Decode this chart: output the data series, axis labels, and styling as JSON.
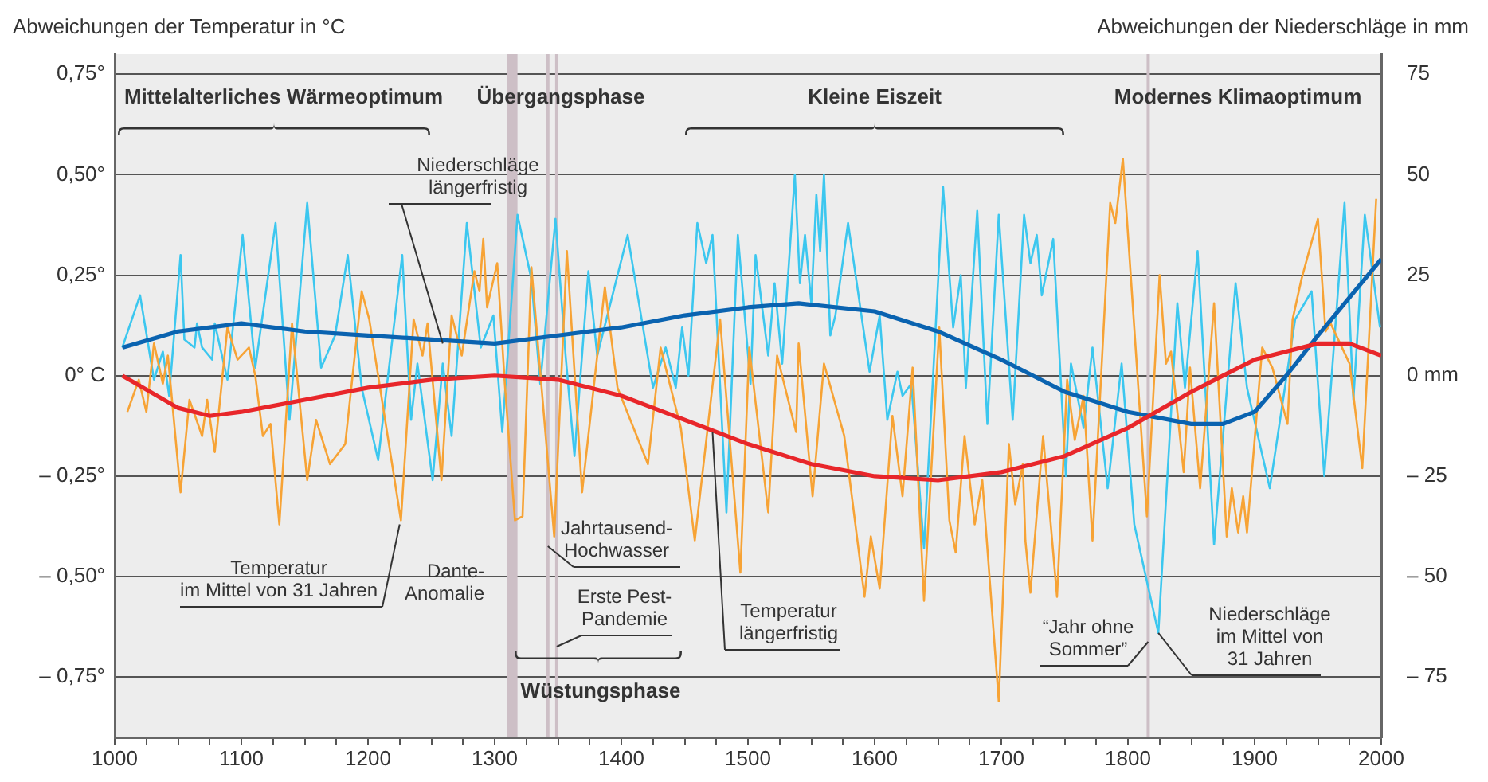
{
  "chart_data": {
    "type": "line",
    "ylabel": "Abweichungen der Temperatur in °C",
    "y2label": "Abweichungen der Niederschläge in mm",
    "annotations": [
      "Mittelalterliches Wärmeoptimum",
      "Übergangsphase",
      "Kleine Eiszeit",
      "Modernes Klimaoptimum",
      "Wüstungsphase"
    ],
    "xlim": [
      1000,
      2000
    ],
    "xticks": [
      1000,
      {
        "value": 1025,
        "label": null
      },
      {
        "value": 1050,
        "label": null
      },
      {
        "value": 1075,
        "label": null
      },
      1100,
      {
        "value": 1125,
        "label": null
      },
      {
        "value": 1150,
        "label": null
      },
      {
        "value": 1175,
        "label": null
      },
      1200,
      {
        "value": 1225,
        "label": null
      },
      {
        "value": 1250,
        "label": null
      },
      {
        "value": 1275,
        "label": null
      },
      1300,
      {
        "value": 1325,
        "label": null
      },
      {
        "value": 1350,
        "label": null
      },
      {
        "value": 1375,
        "label": null
      },
      1400,
      {
        "value": 1425,
        "label": null
      },
      {
        "value": 1450,
        "label": null
      },
      {
        "value": 1475,
        "label": null
      },
      1500,
      {
        "value": 1525,
        "label": null
      },
      {
        "value": 1550,
        "label": null
      },
      {
        "value": 1575,
        "label": null
      },
      1600,
      {
        "value": 1625,
        "label": null
      },
      {
        "value": 1650,
        "label": null
      },
      {
        "value": 1675,
        "label": null
      },
      1700,
      {
        "value": 1725,
        "label": null
      },
      {
        "value": 1750,
        "label": null
      },
      {
        "value": 1775,
        "label": null
      },
      1800,
      {
        "value": 1825,
        "label": null
      },
      {
        "value": 1850,
        "label": null
      },
      {
        "value": 1875,
        "label": null
      },
      1900,
      {
        "value": 1925,
        "label": null
      },
      {
        "value": 1950,
        "label": null
      },
      {
        "value": 1975,
        "label": null
      },
      2000
    ],
    "ylim": [
      -0.9,
      0.8
    ],
    "yticks": [
      {
        "value": -0.75,
        "label": "– 0,75°"
      },
      {
        "value": -0.5,
        "label": "– 0,50°"
      },
      {
        "value": -0.25,
        "label": "– 0,25°"
      },
      {
        "value": 0,
        "label": "0° C"
      },
      {
        "value": 0.25,
        "label": "0,25°"
      },
      {
        "value": 0.5,
        "label": "0,50°"
      },
      {
        "value": 0.75,
        "label": "0,75°"
      }
    ],
    "y2lim": [
      -90,
      80
    ],
    "y2ticks": [
      {
        "value": -75,
        "label": "– 75"
      },
      {
        "value": -50,
        "label": "– 50"
      },
      {
        "value": -25,
        "label": "– 25"
      },
      {
        "value": 0,
        "label": "0 mm"
      },
      25,
      50,
      75
    ],
    "grid": "y",
    "legend": false,
    "marker": "none",
    "bands": [
      {
        "axis": "x",
        "from": 1310,
        "to": 1318,
        "label": "Dante-Anomalie",
        "color": "#cdbfc6"
      }
    ],
    "ref_lines": [
      {
        "axis": "x",
        "value": 1342,
        "label": "Jahrtausend-Hochwasser",
        "color": "#cdbfc6"
      },
      {
        "axis": "x",
        "value": 1349,
        "label": "Erste Pest-Pandemie",
        "color": "#cdbfc6"
      },
      {
        "axis": "x",
        "value": 1816,
        "label": "“Jahr ohne Sommer”",
        "color": "#cdbfc6"
      }
    ],
    "series": [
      {
        "name": "Temperatur im Mittel von 31 Jahren",
        "color": "#f7a335",
        "x": [
          1010,
          1019,
          1025,
          1031,
          1038,
          1042,
          1052,
          1059,
          1069,
          1073,
          1079,
          1089,
          1097,
          1106,
          1111,
          1117,
          1123,
          1130,
          1140,
          1152,
          1159,
          1170,
          1182,
          1195,
          1201,
          1226,
          1236,
          1243,
          1247,
          1258,
          1266,
          1274,
          1284,
          1288,
          1291,
          1294,
          1302,
          1308,
          1316,
          1322,
          1329,
          1347,
          1357,
          1369,
          1387,
          1397,
          1421,
          1431,
          1447,
          1458,
          1478,
          1494,
          1501,
          1516,
          1523,
          1538,
          1540,
          1551,
          1560,
          1576,
          1592,
          1597,
          1604,
          1614,
          1622,
          1630,
          1639,
          1651,
          1659,
          1664,
          1671,
          1679,
          1685,
          1698,
          1706,
          1711,
          1717,
          1719,
          1723,
          1733,
          1744,
          1752,
          1758,
          1765,
          1772,
          1786,
          1790,
          1796,
          1815,
          1825,
          1830,
          1834,
          1844,
          1849,
          1857,
          1868,
          1878,
          1882,
          1887,
          1891,
          1894,
          1906,
          1914,
          1926,
          1930,
          1937,
          1950,
          1956,
          1960,
          1975,
          1985,
          1996
        ],
        "values": [
          -0.09,
          -0.01,
          -0.09,
          0.08,
          -0.02,
          0.05,
          -0.29,
          -0.06,
          -0.15,
          -0.06,
          -0.19,
          0.12,
          0.04,
          0.07,
          0,
          -0.15,
          -0.12,
          -0.37,
          0.13,
          -0.26,
          -0.11,
          -0.22,
          -0.17,
          0.21,
          0.14,
          -0.36,
          0.14,
          0.05,
          0.13,
          -0.26,
          0.15,
          0.05,
          0.26,
          0.21,
          0.34,
          0.17,
          0.28,
          -0.02,
          -0.36,
          -0.35,
          0.27,
          -0.4,
          0.31,
          -0.29,
          0.22,
          -0.03,
          -0.22,
          0.07,
          -0.13,
          -0.41,
          0.14,
          -0.49,
          0.07,
          -0.34,
          0.05,
          -0.14,
          0.08,
          -0.3,
          0.03,
          -0.15,
          -0.55,
          -0.4,
          -0.53,
          -0.1,
          -0.3,
          0.02,
          -0.56,
          0.12,
          -0.36,
          -0.44,
          -0.15,
          -0.37,
          -0.26,
          -0.81,
          -0.17,
          -0.32,
          -0.22,
          -0.41,
          -0.54,
          -0.15,
          -0.55,
          -0.01,
          -0.16,
          -0.05,
          -0.41,
          0.43,
          0.38,
          0.54,
          -0.35,
          0.25,
          0.03,
          0.06,
          -0.24,
          0.02,
          -0.28,
          0.18,
          -0.4,
          -0.28,
          -0.39,
          -0.3,
          -0.39,
          0.07,
          0.02,
          -0.12,
          0.14,
          0.24,
          0.39,
          0.11,
          0.13,
          0.03,
          -0.23,
          0.44
        ]
      },
      {
        "name": "Temperatur längerfristig",
        "color": "#e8262a",
        "x": [
          1006,
          1050,
          1075,
          1100,
          1150,
          1200,
          1250,
          1300,
          1350,
          1400,
          1450,
          1500,
          1550,
          1600,
          1650,
          1700,
          1750,
          1800,
          1850,
          1900,
          1950,
          1975,
          2000
        ],
        "values": [
          0,
          -0.08,
          -0.1,
          -0.09,
          -0.06,
          -0.03,
          -0.01,
          0,
          -0.01,
          -0.05,
          -0.11,
          -0.17,
          -0.22,
          -0.25,
          -0.26,
          -0.24,
          -0.2,
          -0.13,
          -0.04,
          0.04,
          0.08,
          0.08,
          0.05
        ]
      },
      {
        "name": "Niederschläge im Mittel von 31 Jahren",
        "color": "#3cc7ef",
        "axis": "y2",
        "x": [
          1006,
          1020,
          1031,
          1038,
          1043,
          1052,
          1055,
          1063,
          1065,
          1069,
          1077,
          1079,
          1089,
          1101,
          1111,
          1127,
          1138,
          1152,
          1163,
          1174,
          1184,
          1195,
          1208,
          1227,
          1234,
          1239,
          1251,
          1259,
          1266,
          1278,
          1289,
          1299,
          1306,
          1318,
          1329,
          1336,
          1348,
          1356,
          1363,
          1374,
          1381,
          1405,
          1425,
          1435,
          1443,
          1448,
          1453,
          1460,
          1467,
          1472,
          1483,
          1492,
          1502,
          1506,
          1516,
          1521,
          1527,
          1537,
          1541,
          1545,
          1550,
          1554,
          1557,
          1560,
          1565,
          1569,
          1579,
          1596,
          1604,
          1610,
          1618,
          1622,
          1629,
          1639,
          1654,
          1662,
          1668,
          1672,
          1681,
          1689,
          1698,
          1709,
          1718,
          1723,
          1728,
          1732,
          1741,
          1751,
          1755,
          1765,
          1772,
          1784,
          1795,
          1805,
          1824,
          1839,
          1845,
          1855,
          1868,
          1885,
          1894,
          1912,
          1932,
          1945,
          1955,
          1971,
          1978,
          1987,
          1999
        ],
        "values": [
          7,
          20,
          -1,
          6,
          -5,
          30,
          9,
          7,
          13,
          7,
          4,
          13,
          -1,
          35,
          2,
          38,
          -11,
          43,
          2,
          10,
          30,
          -3,
          -21,
          30,
          -11,
          3,
          -26,
          3,
          -15,
          38,
          7,
          15,
          -14,
          40,
          24,
          -2,
          39,
          5,
          -20,
          26,
          5,
          35,
          -3,
          7,
          -3,
          12,
          0,
          38,
          28,
          35,
          -34,
          35,
          -2,
          30,
          5,
          23,
          3,
          50,
          23,
          35,
          18,
          45,
          31,
          50,
          10,
          15,
          38,
          1,
          15,
          -11,
          1,
          -5,
          -2,
          -43,
          47,
          12,
          25,
          -3,
          41,
          -12,
          40,
          -11,
          40,
          28,
          35,
          20,
          34,
          -25,
          3,
          -13,
          7,
          -28,
          3,
          -37,
          -64,
          18,
          -3,
          31,
          -42,
          23,
          -3,
          -28,
          14,
          21,
          -25,
          43,
          -6,
          40,
          12
        ]
      },
      {
        "name": "Niederschläge längerfristig",
        "color": "#0a63b0",
        "axis": "y2",
        "x": [
          1006,
          1050,
          1100,
          1150,
          1200,
          1250,
          1300,
          1350,
          1400,
          1450,
          1500,
          1540,
          1600,
          1650,
          1700,
          1750,
          1800,
          1850,
          1875,
          1900,
          1925,
          1950,
          2000
        ],
        "values": [
          7,
          11,
          13,
          11,
          10,
          9,
          8,
          10,
          12,
          15,
          17,
          18,
          16,
          11,
          4,
          -4,
          -9,
          -12,
          -12,
          -9,
          0,
          10,
          29
        ]
      }
    ]
  }
}
